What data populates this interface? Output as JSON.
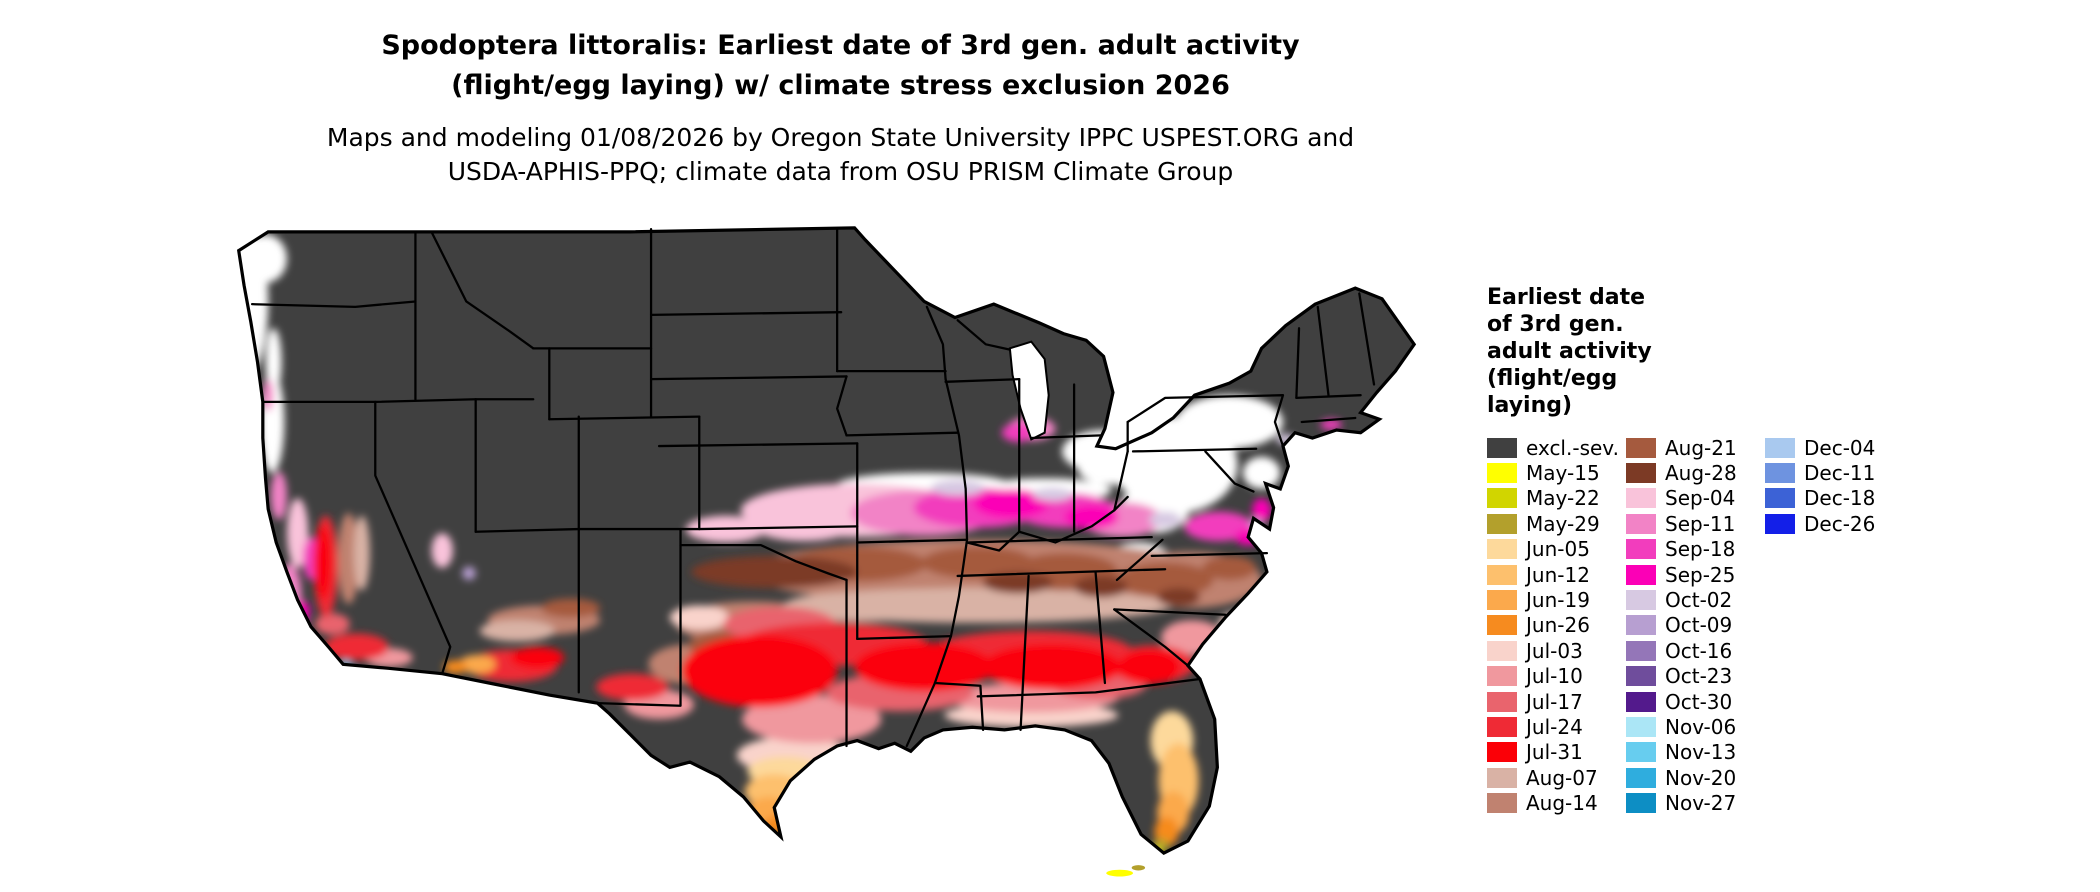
{
  "title": {
    "lines": [
      "Spodoptera littoralis: Earliest date of 3rd gen. adult activity",
      "(flight/egg laying) w/ climate stress exclusion 2026"
    ]
  },
  "subtitle": {
    "lines": [
      "Maps and modeling 01/08/2026 by Oregon State University IPPC USPEST.ORG and",
      "USDA-APHIS-PPQ; climate data from OSU PRISM Climate Group"
    ]
  },
  "legend": {
    "title_lines": [
      "Earliest date",
      "of 3rd gen.",
      "adult activity",
      "(flight/egg",
      "laying)"
    ],
    "columns": [
      [
        {
          "label": "excl.-sev.",
          "color": "#404040"
        },
        {
          "label": "May-15",
          "color": "#ffff00"
        },
        {
          "label": "May-22",
          "color": "#d1d500"
        },
        {
          "label": "May-29",
          "color": "#b3a02c"
        },
        {
          "label": "Jun-05",
          "color": "#fdd99b"
        },
        {
          "label": "Jun-12",
          "color": "#fdc06d"
        },
        {
          "label": "Jun-19",
          "color": "#fba94c"
        },
        {
          "label": "Jun-26",
          "color": "#f68b1f"
        },
        {
          "label": "Jul-03",
          "color": "#f9d3cb"
        },
        {
          "label": "Jul-10",
          "color": "#f0989e"
        },
        {
          "label": "Jul-17",
          "color": "#e9646d"
        },
        {
          "label": "Jul-24",
          "color": "#ef2a35"
        },
        {
          "label": "Jul-31",
          "color": "#fb0007"
        },
        {
          "label": "Aug-07",
          "color": "#d9b2a5"
        },
        {
          "label": "Aug-14",
          "color": "#c08270"
        }
      ],
      [
        {
          "label": "Aug-21",
          "color": "#a55a3e"
        },
        {
          "label": "Aug-28",
          "color": "#7c3a25"
        },
        {
          "label": "Sep-04",
          "color": "#f9c3da"
        },
        {
          "label": "Sep-11",
          "color": "#f283c6"
        },
        {
          "label": "Sep-18",
          "color": "#f23dbd"
        },
        {
          "label": "Sep-25",
          "color": "#fb00b6"
        },
        {
          "label": "Oct-02",
          "color": "#d7c9e2"
        },
        {
          "label": "Oct-09",
          "color": "#b79fd1"
        },
        {
          "label": "Oct-16",
          "color": "#9476b8"
        },
        {
          "label": "Oct-23",
          "color": "#6f4d9c"
        },
        {
          "label": "Oct-30",
          "color": "#531a8c"
        },
        {
          "label": "Nov-06",
          "color": "#abe6f6"
        },
        {
          "label": "Nov-13",
          "color": "#67cdef"
        },
        {
          "label": "Nov-20",
          "color": "#2fadde"
        },
        {
          "label": "Nov-27",
          "color": "#0d8ec4"
        }
      ],
      [
        {
          "label": "Dec-04",
          "color": "#a9c9ef"
        },
        {
          "label": "Dec-11",
          "color": "#6e93e0"
        },
        {
          "label": "Dec-18",
          "color": "#3c62d6"
        },
        {
          "label": "Dec-26",
          "color": "#131fe8"
        }
      ]
    ]
  },
  "map": {
    "region": "contiguous United States",
    "no_data_color": "#ffffff",
    "excluded_fill_label": "excl.-sev.",
    "state_border_color": "#000000",
    "outline_color": "#000000"
  }
}
